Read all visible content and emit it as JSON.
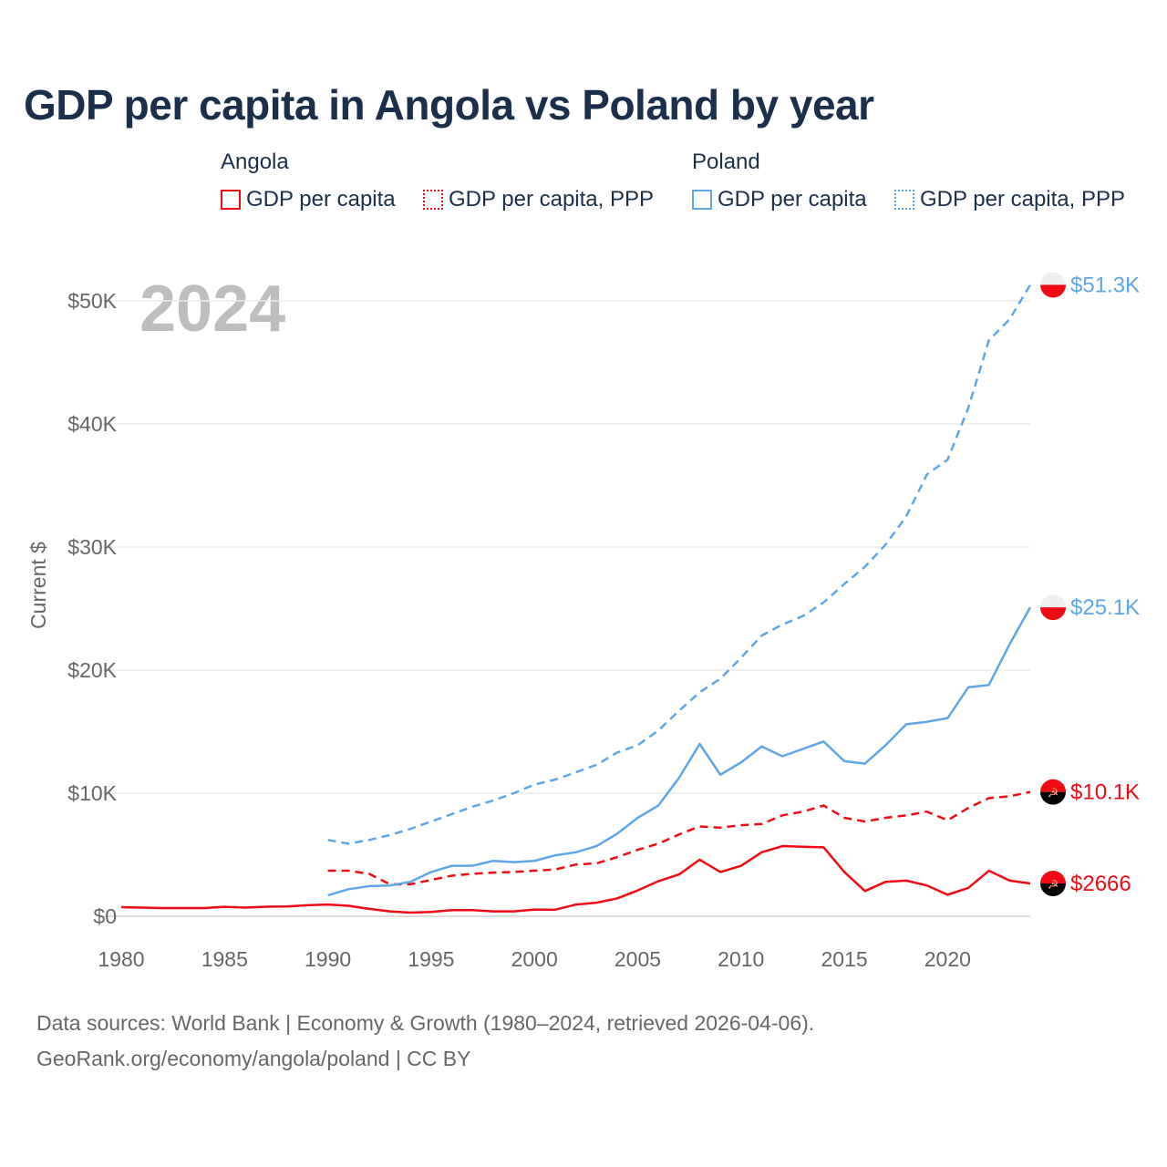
{
  "title": "GDP per capita in Angola vs Poland by year",
  "legend": {
    "groups": [
      {
        "name": "Angola",
        "items": [
          "GDP per capita",
          "GDP per capita, PPP"
        ],
        "color": "#f00a14"
      },
      {
        "name": "Poland",
        "items": [
          "GDP per capita",
          "GDP per capita, PPP"
        ],
        "color": "#5fa6e8"
      }
    ]
  },
  "year_watermark": "2024",
  "sources": [
    "Data sources: World Bank | Economy & Growth (1980–2024, retrieved 2026-04-06).",
    "GeoRank.org/economy/angola/poland | CC BY"
  ],
  "chart_data": {
    "type": "line",
    "title": "GDP per capita in Angola vs Poland by year",
    "xlabel": "",
    "ylabel": "Current $",
    "xlim": [
      1980,
      2024
    ],
    "ylim": [
      0,
      50000
    ],
    "xticks": [
      1980,
      1985,
      1990,
      1995,
      2000,
      2005,
      2010,
      2015,
      2020
    ],
    "xtick_labels": [
      "1980",
      "1985",
      "1990",
      "1995",
      "2000",
      "2005",
      "2010",
      "2015",
      "2020"
    ],
    "yticks": [
      0,
      10000,
      20000,
      30000,
      40000,
      50000
    ],
    "ytick_labels": [
      "$0",
      "$10K",
      "$20K",
      "$30K",
      "$40K",
      "$50K"
    ],
    "grid": true,
    "series": [
      {
        "name": "Angola GDP per capita",
        "color": "#f00a14",
        "dash": false,
        "start": 1980,
        "end_label": "$2666",
        "values": [
          740,
          700,
          670,
          670,
          670,
          770,
          700,
          780,
          800,
          900,
          950,
          850,
          600,
          400,
          300,
          350,
          500,
          500,
          400,
          400,
          550,
          530,
          950,
          1100,
          1450,
          2100,
          2850,
          3400,
          4600,
          3600,
          4100,
          5200,
          5700,
          5650,
          5600,
          3600,
          2050,
          2800,
          2900,
          2500,
          1750,
          2300,
          3700,
          2900,
          2666
        ]
      },
      {
        "name": "Angola GDP per capita, PPP",
        "color": "#f00a14",
        "dash": true,
        "start": 1990,
        "end_label": "$10.1K",
        "values": [
          3700,
          3700,
          3450,
          2600,
          2600,
          2950,
          3300,
          3450,
          3550,
          3600,
          3700,
          3800,
          4200,
          4300,
          4800,
          5400,
          5900,
          6650,
          7300,
          7200,
          7400,
          7500,
          8200,
          8500,
          9000,
          8000,
          7700,
          8000,
          8200,
          8500,
          7800,
          8800,
          9600,
          9750,
          10100
        ]
      },
      {
        "name": "Poland GDP per capita",
        "color": "#5fa6e8",
        "dash": false,
        "start": 1990,
        "end_label": "$25.1K",
        "values": [
          1700,
          2200,
          2450,
          2500,
          2800,
          3600,
          4100,
          4100,
          4500,
          4400,
          4500,
          4950,
          5200,
          5700,
          6700,
          8000,
          9000,
          11250,
          14000,
          11500,
          12500,
          13800,
          13000,
          13600,
          14200,
          12600,
          12400,
          13900,
          15600,
          15800,
          16100,
          18600,
          18800,
          22100,
          25100
        ]
      },
      {
        "name": "Poland GDP per capita, PPP",
        "color": "#5fa6e8",
        "dash": true,
        "start": 1990,
        "end_label": "$51.3K",
        "values": [
          6200,
          5900,
          6200,
          6600,
          7100,
          7700,
          8300,
          8900,
          9400,
          10000,
          10700,
          11100,
          11700,
          12300,
          13300,
          13900,
          15100,
          16700,
          18200,
          19300,
          21000,
          22800,
          23700,
          24400,
          25500,
          27000,
          28400,
          30200,
          32500,
          35900,
          37100,
          41300,
          46800,
          48500,
          51300
        ]
      }
    ]
  }
}
